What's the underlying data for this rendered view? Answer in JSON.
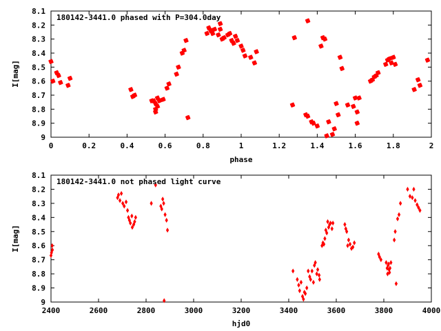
{
  "colors": {
    "points": "#ff0000",
    "frame": "#000000",
    "background": "#ffffff"
  },
  "chart_data": [
    {
      "type": "scatter",
      "title": "180142-3441.0 phased with P=304.0day",
      "xlabel": "phase",
      "ylabel": "I[mag]",
      "xlim": [
        0,
        2
      ],
      "ylim": [
        9,
        8.1
      ],
      "y_inverted": true,
      "grid": false,
      "legend": "none",
      "marker": "star",
      "x_ticks": [
        "0",
        "0.2",
        "0.4",
        "0.6",
        "0.8",
        "1",
        "1.2",
        "1.4",
        "1.6",
        "1.8",
        "2"
      ],
      "y_ticks": [
        "8.1",
        "8.2",
        "8.3",
        "8.4",
        "8.5",
        "8.6",
        "8.7",
        "8.8",
        "8.9",
        "9"
      ],
      "series": [
        {
          "x": [
            0.0,
            0.01,
            0.03,
            0.04,
            0.05,
            0.09,
            0.1,
            0.42,
            0.43,
            0.44,
            0.53,
            0.54,
            0.55,
            0.55,
            0.55,
            0.56,
            0.56,
            0.57,
            0.59,
            0.61,
            0.62,
            0.66,
            0.67,
            0.69,
            0.7,
            0.71,
            0.72,
            0.82,
            0.83,
            0.84,
            0.85,
            0.86,
            0.88,
            0.89,
            0.89,
            0.9,
            0.91,
            0.93,
            0.94,
            0.95,
            0.96,
            0.97,
            0.98,
            1.0,
            1.01,
            1.02,
            1.05,
            1.07,
            1.08,
            1.27,
            1.28,
            1.34,
            1.35,
            1.35,
            1.37,
            1.38,
            1.4,
            1.42,
            1.43,
            1.44,
            1.45,
            1.46,
            1.48,
            1.49,
            1.5,
            1.51,
            1.52,
            1.53,
            1.56,
            1.59,
            1.6,
            1.61,
            1.61,
            1.62,
            1.68,
            1.69,
            1.7,
            1.71,
            1.72,
            1.76,
            1.77,
            1.78,
            1.79,
            1.8,
            1.81,
            1.91,
            1.93,
            1.94,
            1.98
          ],
          "y": [
            8.46,
            8.6,
            8.54,
            8.56,
            8.61,
            8.63,
            8.58,
            8.66,
            8.71,
            8.7,
            8.74,
            8.74,
            8.76,
            8.8,
            8.82,
            8.78,
            8.72,
            8.74,
            8.73,
            8.65,
            8.62,
            8.55,
            8.5,
            8.4,
            8.38,
            8.31,
            8.86,
            8.26,
            8.22,
            8.24,
            8.26,
            8.23,
            8.27,
            8.23,
            8.19,
            8.3,
            8.29,
            8.27,
            8.26,
            8.31,
            8.33,
            8.28,
            8.31,
            8.35,
            8.38,
            8.42,
            8.43,
            8.47,
            8.39,
            8.77,
            8.29,
            8.84,
            8.17,
            8.85,
            8.89,
            8.9,
            8.92,
            8.35,
            8.29,
            8.3,
            8.99,
            8.89,
            8.98,
            8.94,
            8.76,
            8.84,
            8.43,
            8.51,
            8.77,
            8.78,
            8.72,
            8.9,
            8.82,
            8.72,
            8.6,
            8.59,
            8.57,
            8.56,
            8.54,
            8.48,
            8.45,
            8.44,
            8.47,
            8.43,
            8.48,
            8.66,
            8.59,
            8.63,
            8.45
          ]
        }
      ]
    },
    {
      "type": "scatter",
      "title": "180142-3441.0 not phased light curve",
      "xlabel": "hjd0",
      "ylabel": "I[mag]",
      "xlim": [
        2400,
        4000
      ],
      "ylim": [
        9,
        8.1
      ],
      "y_inverted": true,
      "grid": false,
      "legend": "none",
      "marker": "diamond",
      "x_ticks": [
        "2400",
        "2600",
        "2800",
        "3000",
        "3200",
        "3400",
        "3600",
        "3800",
        "4000"
      ],
      "y_ticks": [
        "8.1",
        "8.2",
        "8.3",
        "8.4",
        "8.5",
        "8.6",
        "8.7",
        "8.8",
        "8.9",
        "9"
      ],
      "series": [
        {
          "x": [
            2400,
            2402,
            2405,
            2406,
            2680,
            2684,
            2690,
            2696,
            2702,
            2708,
            2716,
            2722,
            2726,
            2730,
            2734,
            2740,
            2742,
            2748,
            2752,
            2756,
            2822,
            2840,
            2862,
            2866,
            2870,
            2874,
            2876,
            2880,
            2886,
            2890,
            3418,
            3436,
            3442,
            3446,
            3452,
            3458,
            3462,
            3466,
            3470,
            3476,
            3482,
            3488,
            3492,
            3498,
            3504,
            3508,
            3512,
            3518,
            3522,
            3528,
            3530,
            3540,
            3544,
            3548,
            3552,
            3556,
            3560,
            3564,
            3568,
            3572,
            3576,
            3582,
            3586,
            3636,
            3640,
            3644,
            3648,
            3652,
            3658,
            3664,
            3670,
            3676,
            3778,
            3782,
            3788,
            3810,
            3814,
            3816,
            3818,
            3820,
            3822,
            3824,
            3826,
            3830,
            3844,
            3848,
            3852,
            3858,
            3864,
            3870,
            3900,
            3910,
            3920,
            3926,
            3932,
            3940,
            3946,
            3952
          ],
          "y": [
            8.67,
            8.65,
            8.6,
            8.63,
            8.26,
            8.24,
            8.28,
            8.23,
            8.3,
            8.32,
            8.29,
            8.35,
            8.4,
            8.42,
            8.44,
            8.39,
            8.47,
            8.45,
            8.43,
            8.4,
            8.3,
            8.17,
            8.32,
            8.34,
            8.27,
            8.3,
            8.99,
            8.38,
            8.42,
            8.49,
            8.78,
            8.84,
            8.88,
            8.92,
            8.86,
            8.96,
            8.98,
            8.93,
            8.94,
            8.9,
            8.78,
            8.82,
            8.84,
            8.78,
            8.86,
            8.74,
            8.72,
            8.8,
            8.77,
            8.81,
            8.84,
            8.6,
            8.58,
            8.59,
            8.55,
            8.49,
            8.51,
            8.43,
            8.47,
            8.45,
            8.44,
            8.48,
            8.44,
            8.45,
            8.48,
            8.5,
            8.6,
            8.56,
            8.59,
            8.62,
            8.61,
            8.58,
            8.66,
            8.68,
            8.7,
            8.72,
            8.76,
            8.8,
            8.74,
            8.73,
            8.77,
            8.79,
            8.76,
            8.72,
            8.56,
            8.5,
            8.87,
            8.41,
            8.38,
            8.3,
            8.2,
            8.25,
            8.26,
            8.2,
            8.28,
            8.31,
            8.33,
            8.35
          ]
        }
      ]
    }
  ]
}
